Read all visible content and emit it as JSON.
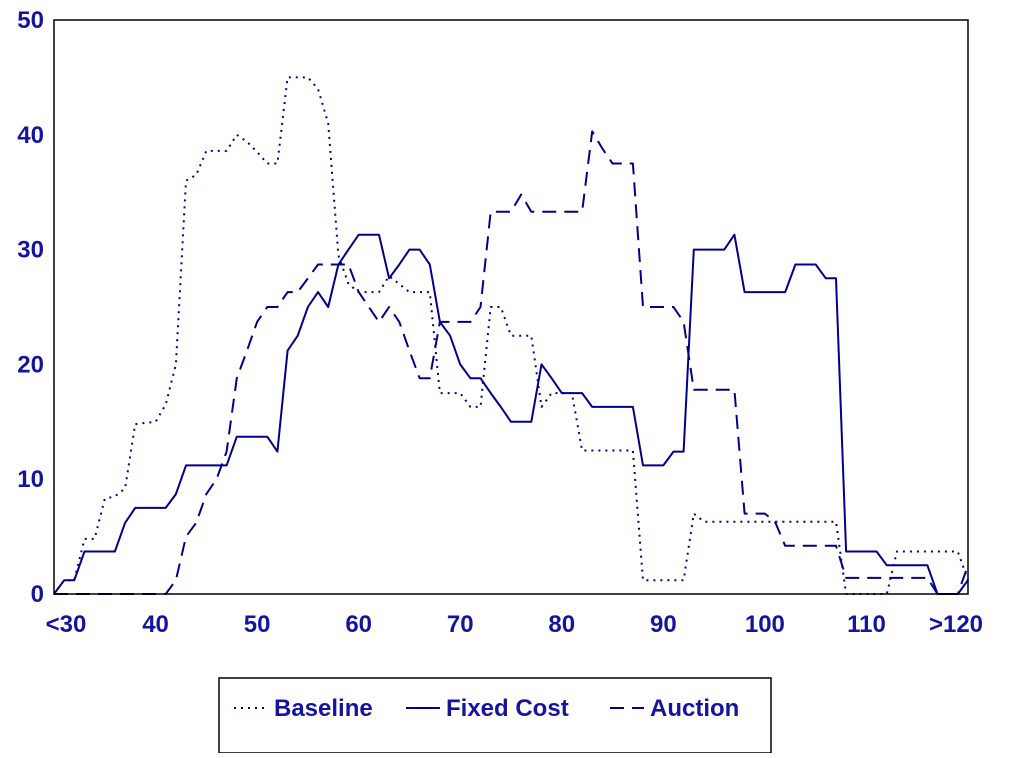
{
  "chart_data": {
    "type": "line",
    "title": "",
    "xlabel": "",
    "ylabel": "",
    "xlim": [
      30,
      120
    ],
    "ylim": [
      0,
      50
    ],
    "xticks": [
      {
        "value": 30,
        "label": "<30"
      },
      {
        "value": 40,
        "label": "40"
      },
      {
        "value": 50,
        "label": "50"
      },
      {
        "value": 60,
        "label": "60"
      },
      {
        "value": 70,
        "label": "70"
      },
      {
        "value": 80,
        "label": "80"
      },
      {
        "value": 90,
        "label": "90"
      },
      {
        "value": 100,
        "label": "100"
      },
      {
        "value": 110,
        "label": "110"
      },
      {
        "value": 120,
        "label": ">120"
      }
    ],
    "yticks": [
      {
        "value": 0,
        "label": "0"
      },
      {
        "value": 10,
        "label": "10"
      },
      {
        "value": 20,
        "label": "20"
      },
      {
        "value": 30,
        "label": "30"
      },
      {
        "value": 40,
        "label": "40"
      },
      {
        "value": 50,
        "label": "50"
      }
    ],
    "grid": false,
    "legend_position": "bottom",
    "line_color": "#00008b",
    "series": [
      {
        "name": "Baseline",
        "style": "dotted",
        "points": [
          [
            30,
            0
          ],
          [
            31,
            1.2
          ],
          [
            32,
            1.2
          ],
          [
            33,
            4.8
          ],
          [
            34,
            4.8
          ],
          [
            35,
            8.3
          ],
          [
            36,
            8.5
          ],
          [
            37,
            9.2
          ],
          [
            38,
            14.8
          ],
          [
            39,
            14.9
          ],
          [
            40,
            15
          ],
          [
            41,
            16.5
          ],
          [
            42,
            20
          ],
          [
            43,
            36
          ],
          [
            44,
            36.5
          ],
          [
            45,
            38.6
          ],
          [
            46,
            38.6
          ],
          [
            47,
            38.6
          ],
          [
            48,
            40
          ],
          [
            49,
            39.4
          ],
          [
            50,
            38.5
          ],
          [
            51,
            37.5
          ],
          [
            52,
            37.5
          ],
          [
            53,
            45
          ],
          [
            54,
            45
          ],
          [
            55,
            45
          ],
          [
            56,
            44
          ],
          [
            57,
            41
          ],
          [
            58,
            29.5
          ],
          [
            59,
            27
          ],
          [
            60,
            26.3
          ],
          [
            61,
            26.3
          ],
          [
            62,
            26.3
          ],
          [
            63,
            27.7
          ],
          [
            64,
            27
          ],
          [
            65,
            26.3
          ],
          [
            66,
            26.3
          ],
          [
            67,
            26.3
          ],
          [
            68,
            17.5
          ],
          [
            69,
            17.5
          ],
          [
            70,
            17.5
          ],
          [
            71,
            16.3
          ],
          [
            72,
            16.3
          ],
          [
            73,
            25
          ],
          [
            74,
            25
          ],
          [
            75,
            22.5
          ],
          [
            76,
            22.5
          ],
          [
            77,
            22.5
          ],
          [
            78,
            16.3
          ],
          [
            79,
            17.5
          ],
          [
            80,
            17.5
          ],
          [
            81,
            17.5
          ],
          [
            82,
            12.5
          ],
          [
            83,
            12.5
          ],
          [
            84,
            12.5
          ],
          [
            85,
            12.5
          ],
          [
            86,
            12.5
          ],
          [
            87,
            12.5
          ],
          [
            88,
            1.2
          ],
          [
            89,
            1.2
          ],
          [
            90,
            1.2
          ],
          [
            91,
            1.2
          ],
          [
            92,
            1.2
          ],
          [
            93,
            7
          ],
          [
            94,
            6.3
          ],
          [
            95,
            6.3
          ],
          [
            96,
            6.3
          ],
          [
            97,
            6.3
          ],
          [
            98,
            6.3
          ],
          [
            99,
            6.3
          ],
          [
            100,
            6.3
          ],
          [
            101,
            6.3
          ],
          [
            102,
            6.3
          ],
          [
            103,
            6.3
          ],
          [
            104,
            6.3
          ],
          [
            105,
            6.3
          ],
          [
            106,
            6.3
          ],
          [
            107,
            6.3
          ],
          [
            108,
            0
          ],
          [
            109,
            0
          ],
          [
            110,
            0
          ],
          [
            111,
            0
          ],
          [
            112,
            0
          ],
          [
            113,
            3.7
          ],
          [
            114,
            3.7
          ],
          [
            115,
            3.7
          ],
          [
            116,
            3.7
          ],
          [
            117,
            3.7
          ],
          [
            118,
            3.7
          ],
          [
            119,
            3.7
          ],
          [
            120,
            1.2
          ]
        ]
      },
      {
        "name": "Fixed Cost",
        "style": "solid",
        "points": [
          [
            30,
            0
          ],
          [
            31,
            1.2
          ],
          [
            32,
            1.2
          ],
          [
            33,
            3.7
          ],
          [
            34,
            3.7
          ],
          [
            35,
            3.7
          ],
          [
            36,
            3.7
          ],
          [
            37,
            6.2
          ],
          [
            38,
            7.5
          ],
          [
            39,
            7.5
          ],
          [
            40,
            7.5
          ],
          [
            41,
            7.5
          ],
          [
            42,
            8.7
          ],
          [
            43,
            11.2
          ],
          [
            44,
            11.2
          ],
          [
            45,
            11.2
          ],
          [
            46,
            11.2
          ],
          [
            47,
            11.2
          ],
          [
            48,
            13.7
          ],
          [
            49,
            13.7
          ],
          [
            50,
            13.7
          ],
          [
            51,
            13.7
          ],
          [
            52,
            12.4
          ],
          [
            53,
            21.2
          ],
          [
            54,
            22.5
          ],
          [
            55,
            25
          ],
          [
            56,
            26.3
          ],
          [
            57,
            25
          ],
          [
            58,
            28.7
          ],
          [
            59,
            30
          ],
          [
            60,
            31.3
          ],
          [
            61,
            31.3
          ],
          [
            62,
            31.3
          ],
          [
            63,
            27.5
          ],
          [
            64,
            28.7
          ],
          [
            65,
            30
          ],
          [
            66,
            30
          ],
          [
            67,
            28.7
          ],
          [
            68,
            23.7
          ],
          [
            69,
            22.5
          ],
          [
            70,
            20
          ],
          [
            71,
            18.8
          ],
          [
            72,
            18.8
          ],
          [
            73,
            17.5
          ],
          [
            74,
            16.3
          ],
          [
            75,
            15
          ],
          [
            76,
            15
          ],
          [
            77,
            15
          ],
          [
            78,
            20
          ],
          [
            79,
            18.8
          ],
          [
            80,
            17.5
          ],
          [
            81,
            17.5
          ],
          [
            82,
            17.5
          ],
          [
            83,
            16.3
          ],
          [
            84,
            16.3
          ],
          [
            85,
            16.3
          ],
          [
            86,
            16.3
          ],
          [
            87,
            16.3
          ],
          [
            88,
            11.2
          ],
          [
            89,
            11.2
          ],
          [
            90,
            11.2
          ],
          [
            91,
            12.4
          ],
          [
            92,
            12.4
          ],
          [
            93,
            30
          ],
          [
            94,
            30
          ],
          [
            95,
            30
          ],
          [
            96,
            30
          ],
          [
            97,
            31.3
          ],
          [
            98,
            26.3
          ],
          [
            99,
            26.3
          ],
          [
            100,
            26.3
          ],
          [
            101,
            26.3
          ],
          [
            102,
            26.3
          ],
          [
            103,
            28.7
          ],
          [
            104,
            28.7
          ],
          [
            105,
            28.7
          ],
          [
            106,
            27.5
          ],
          [
            107,
            27.5
          ],
          [
            108,
            3.7
          ],
          [
            109,
            3.7
          ],
          [
            110,
            3.7
          ],
          [
            111,
            3.7
          ],
          [
            112,
            2.5
          ],
          [
            113,
            2.5
          ],
          [
            114,
            2.5
          ],
          [
            115,
            2.5
          ],
          [
            116,
            2.5
          ],
          [
            117,
            0
          ],
          [
            118,
            0
          ],
          [
            119,
            0
          ],
          [
            120,
            1.2
          ]
        ]
      },
      {
        "name": "Auction",
        "style": "dashed",
        "points": [
          [
            30,
            0
          ],
          [
            31,
            0
          ],
          [
            32,
            0
          ],
          [
            33,
            0
          ],
          [
            34,
            0
          ],
          [
            35,
            0
          ],
          [
            36,
            0
          ],
          [
            37,
            0
          ],
          [
            38,
            0
          ],
          [
            39,
            0
          ],
          [
            40,
            0
          ],
          [
            41,
            0
          ],
          [
            42,
            1.2
          ],
          [
            43,
            5
          ],
          [
            44,
            6.2
          ],
          [
            45,
            8.7
          ],
          [
            46,
            10
          ],
          [
            47,
            12.4
          ],
          [
            48,
            18.8
          ],
          [
            49,
            21.2
          ],
          [
            50,
            23.7
          ],
          [
            51,
            25
          ],
          [
            52,
            25
          ],
          [
            53,
            26.3
          ],
          [
            54,
            26.3
          ],
          [
            55,
            27.5
          ],
          [
            56,
            28.7
          ],
          [
            57,
            28.7
          ],
          [
            58,
            28.7
          ],
          [
            59,
            28.7
          ],
          [
            60,
            26.3
          ],
          [
            61,
            25
          ],
          [
            62,
            23.7
          ],
          [
            63,
            25
          ],
          [
            64,
            23.7
          ],
          [
            65,
            21.2
          ],
          [
            66,
            18.8
          ],
          [
            67,
            18.8
          ],
          [
            68,
            23.7
          ],
          [
            69,
            23.7
          ],
          [
            70,
            23.7
          ],
          [
            71,
            23.7
          ],
          [
            72,
            25
          ],
          [
            73,
            33.3
          ],
          [
            74,
            33.3
          ],
          [
            75,
            33.3
          ],
          [
            76,
            34.8
          ],
          [
            77,
            33.3
          ],
          [
            78,
            33.3
          ],
          [
            79,
            33.3
          ],
          [
            80,
            33.3
          ],
          [
            81,
            33.3
          ],
          [
            82,
            33.3
          ],
          [
            83,
            40.3
          ],
          [
            84,
            38.8
          ],
          [
            85,
            37.5
          ],
          [
            86,
            37.5
          ],
          [
            87,
            37.5
          ],
          [
            88,
            25
          ],
          [
            89,
            25
          ],
          [
            90,
            25
          ],
          [
            91,
            25
          ],
          [
            92,
            23.7
          ],
          [
            93,
            17.8
          ],
          [
            94,
            17.8
          ],
          [
            95,
            17.8
          ],
          [
            96,
            17.8
          ],
          [
            97,
            17.8
          ],
          [
            98,
            7
          ],
          [
            99,
            7
          ],
          [
            100,
            7
          ],
          [
            101,
            6.3
          ],
          [
            102,
            4.2
          ],
          [
            103,
            4.2
          ],
          [
            104,
            4.2
          ],
          [
            105,
            4.2
          ],
          [
            106,
            4.2
          ],
          [
            107,
            4.2
          ],
          [
            108,
            1.4
          ],
          [
            109,
            1.4
          ],
          [
            110,
            1.4
          ],
          [
            111,
            1.4
          ],
          [
            112,
            1.4
          ],
          [
            113,
            1.4
          ],
          [
            114,
            1.4
          ],
          [
            115,
            1.4
          ],
          [
            116,
            1.4
          ],
          [
            117,
            0
          ],
          [
            118,
            0
          ],
          [
            119,
            0
          ],
          [
            120,
            2.5
          ]
        ]
      }
    ]
  }
}
